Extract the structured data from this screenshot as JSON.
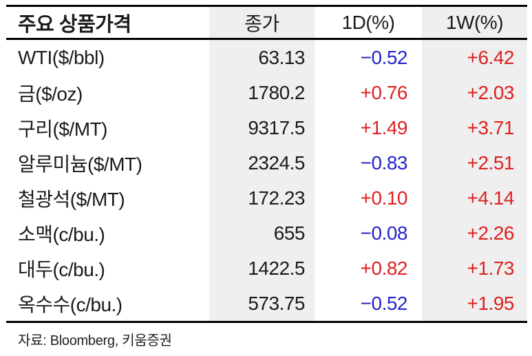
{
  "colors": {
    "positive": "#de2020",
    "negative": "#2323c8",
    "text": "#1a1a1a",
    "column_shade": "#efefef",
    "rule": "#000000"
  },
  "table": {
    "title": "주요 상품가격",
    "columns": [
      "종가",
      "1D(%)",
      "1W(%)"
    ],
    "rows": [
      {
        "label": "WTI($/bbl)",
        "close": "63.13",
        "d1": "−0.52",
        "w1": "+6.42"
      },
      {
        "label": "금($/oz)",
        "close": "1780.2",
        "d1": "+0.76",
        "w1": "+2.03"
      },
      {
        "label": "구리($/MT)",
        "close": "9317.5",
        "d1": "+1.49",
        "w1": "+3.71"
      },
      {
        "label": "알루미늄($/MT)",
        "close": "2324.5",
        "d1": "−0.83",
        "w1": "+2.51"
      },
      {
        "label": "철광석($/MT)",
        "close": "172.23",
        "d1": "+0.10",
        "w1": "+4.14"
      },
      {
        "label": "소맥(c/bu.)",
        "close": "655",
        "d1": "−0.08",
        "w1": "+2.26"
      },
      {
        "label": "대두(c/bu.)",
        "close": "1422.5",
        "d1": "+0.82",
        "w1": "+1.73"
      },
      {
        "label": "옥수수(c/bu.)",
        "close": "573.75",
        "d1": "−0.52",
        "w1": "+1.95"
      }
    ]
  },
  "footer": {
    "source": "자료: Bloomberg,  키움증권"
  },
  "chart_data": {
    "type": "table",
    "title": "주요 상품가격",
    "columns": [
      "주요 상품가격",
      "종가",
      "1D(%)",
      "1W(%)"
    ],
    "rows": [
      [
        "WTI($/bbl)",
        63.13,
        -0.52,
        6.42
      ],
      [
        "금($/oz)",
        1780.2,
        0.76,
        2.03
      ],
      [
        "구리($/MT)",
        9317.5,
        1.49,
        3.71
      ],
      [
        "알루미늄($/MT)",
        2324.5,
        -0.83,
        2.51
      ],
      [
        "철광석($/MT)",
        172.23,
        0.1,
        4.14
      ],
      [
        "소맥(c/bu.)",
        655,
        -0.08,
        2.26
      ],
      [
        "대두(c/bu.)",
        1422.5,
        0.82,
        1.73
      ],
      [
        "옥수수(c/bu.)",
        573.75,
        -0.52,
        1.95
      ]
    ],
    "source": "자료: Bloomberg, 키움증권",
    "notes": "positive changes shown in red, negative changes shown in blue; 종가 and 1W(%) columns shaded light gray"
  }
}
